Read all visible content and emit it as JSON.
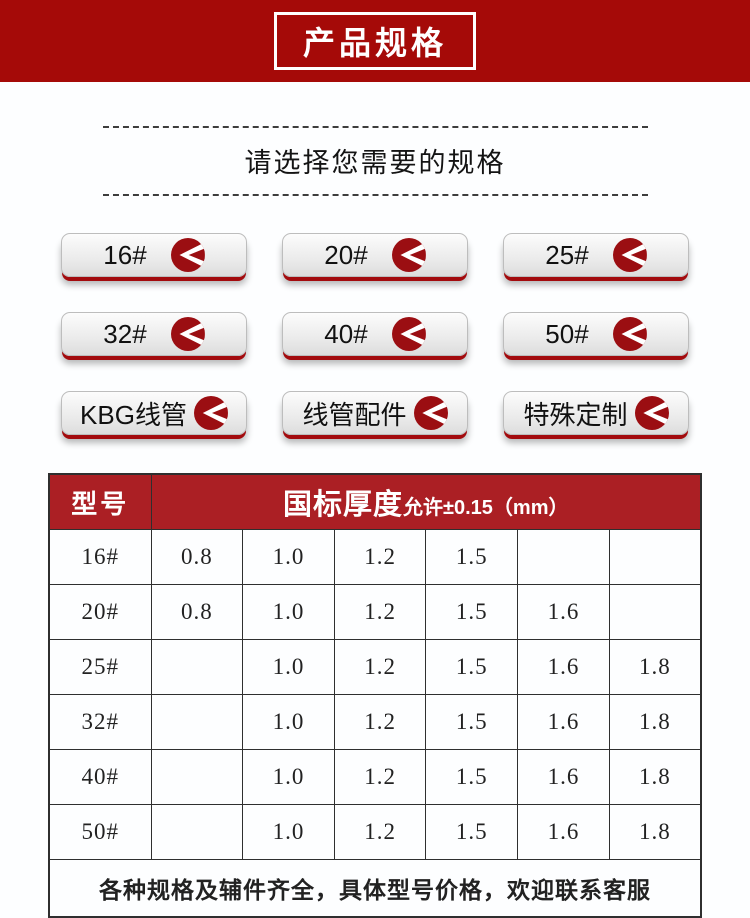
{
  "banner": {
    "title": "产品规格"
  },
  "selector": {
    "heading": "请选择您需要的规格",
    "size_buttons": [
      "16#",
      "20#",
      "25#",
      "32#",
      "40#",
      "50#"
    ],
    "category_buttons": [
      "KBG线管",
      "线管配件",
      "特殊定制"
    ]
  },
  "spec_table": {
    "model_header": "型号",
    "thickness_header": "国标厚度",
    "thickness_tolerance": "允许±0.15（mm）",
    "rows": [
      {
        "model": "16#",
        "values": [
          "0.8",
          "1.0",
          "1.2",
          "1.5",
          "",
          ""
        ]
      },
      {
        "model": "20#",
        "values": [
          "0.8",
          "1.0",
          "1.2",
          "1.5",
          "1.6",
          ""
        ]
      },
      {
        "model": "25#",
        "values": [
          "",
          "1.0",
          "1.2",
          "1.5",
          "1.6",
          "1.8"
        ]
      },
      {
        "model": "32#",
        "values": [
          "",
          "1.0",
          "1.2",
          "1.5",
          "1.6",
          "1.8"
        ]
      },
      {
        "model": "40#",
        "values": [
          "",
          "1.0",
          "1.2",
          "1.5",
          "1.6",
          "1.8"
        ]
      },
      {
        "model": "50#",
        "values": [
          "",
          "1.0",
          "1.2",
          "1.5",
          "1.6",
          "1.8"
        ]
      }
    ],
    "footer_note": "各种规格及辅件齐全，具体型号价格，欢迎联系客服"
  },
  "colors": {
    "banner_red": "#a50a08",
    "table_header_red": "#ab1f24",
    "icon_red": "#9b0e12",
    "footer_text_red": "#e02a1e"
  }
}
